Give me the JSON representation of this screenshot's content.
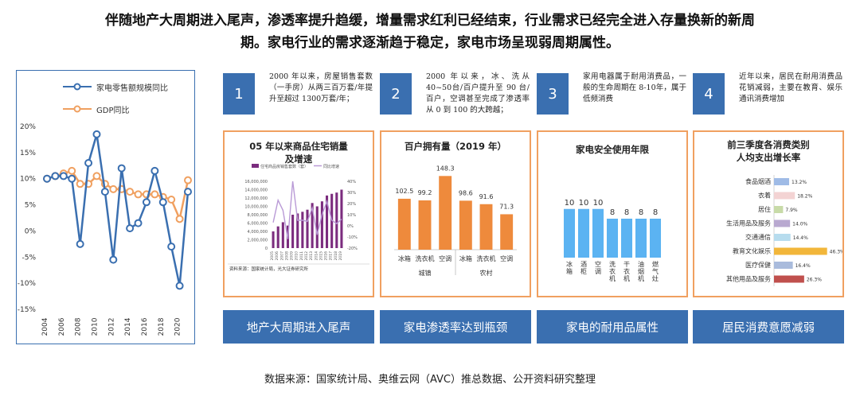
{
  "title": {
    "line1": "伴随地产大周期进入尾声，渗透率提升趋缓，增量需求红利已经结束，行业需求已经完全进入存量换新的新周",
    "line2": "期。家电行业的需求逐渐趋于稳定，家电市场呈现弱周期属性。"
  },
  "points": [
    {
      "num": "1",
      "text": "2000 年以来，房屋销售套数（一手房）从两三百万套/年提升至超过 1300万套/年；"
    },
    {
      "num": "2",
      "text": "2000 年以来，冰、洗从40~50台/百户提升至 90 台/百户，空调甚至完成了渗透率从 0 到 100 的大跨越；"
    },
    {
      "num": "3",
      "text": "家用电器属于耐用消费品，一般的生命周期在 8-10年，属于低频消费"
    },
    {
      "num": "4",
      "text": "近年以来，居民在耐用消费品花销减弱，主要在教育、娱乐通讯消费增加"
    }
  ],
  "buttons": [
    "地产大周期进入尾声",
    "家电渗透率达到瓶颈",
    "家电的耐用品属性",
    "居民消费意愿减弱"
  ],
  "source": "数据来源：国家统计局、奥维云网（AVC）推总数据、公开资料研究整理",
  "colors": {
    "blue": "#3a6fb0",
    "orange": "#f0a060",
    "purple": "#7b2c7e",
    "bar_orange": "#ee8a3c",
    "bar_blue": "#5bb3f2"
  },
  "chart_data": [
    {
      "type": "line",
      "title": "",
      "legend": [
        "家电零售额规模同比",
        "GDP同比"
      ],
      "x": [
        2004,
        2005,
        2006,
        2007,
        2008,
        2009,
        2010,
        2011,
        2012,
        2013,
        2014,
        2015,
        2016,
        2017,
        2018,
        2019,
        2020,
        2021
      ],
      "x_tick_labels": [
        "2004",
        "2006",
        "2008",
        "2010",
        "2012",
        "2014",
        "2016",
        "2018",
        "2020"
      ],
      "y_tick_labels": [
        "20%",
        "15%",
        "10%",
        "5%",
        "0%",
        "-5%",
        "-10%",
        "-15%"
      ],
      "ylim": [
        -15,
        20
      ],
      "series": [
        {
          "name": "家电零售额规模同比",
          "values": [
            10,
            10.5,
            10.5,
            10,
            -2.5,
            13,
            18.5,
            7.5,
            -5.5,
            12,
            0.5,
            1.5,
            5.5,
            11.5,
            5.5,
            -3,
            -10.5,
            7.5
          ]
        },
        {
          "name": "GDP同比",
          "values": [
            10,
            10.5,
            11,
            11.5,
            9,
            9,
            10.5,
            9,
            8,
            8,
            7.5,
            7,
            7,
            7,
            6.5,
            6,
            2.3,
            9.7
          ]
        }
      ]
    },
    {
      "type": "bar",
      "title": "05 年以来商品住宅销量及增速",
      "legend": [
        "住宅商品房销售套数（套）",
        "同比增速"
      ],
      "categories": [
        "2005",
        "2006",
        "2007",
        "2008",
        "2009",
        "2010",
        "2011",
        "2012",
        "2013",
        "2014",
        "2015",
        "2016",
        "2017",
        "2018",
        "2019"
      ],
      "y_tick_labels": [
        "16,000,000",
        "14,000,000",
        "12,000,000",
        "10,000,000",
        "8,000,000",
        "6,000,000",
        "4,000,000",
        "2,000,000",
        "0"
      ],
      "y2_tick_labels": [
        "40%",
        "30%",
        "20%",
        "10%",
        "0%",
        "-10%",
        "-20%"
      ],
      "ylim": [
        0,
        16000000
      ],
      "y2lim": [
        -20,
        40
      ],
      "series": [
        {
          "name": "住宅商品房销售套数（套）",
          "values": [
            4000000,
            5200000,
            6200000,
            5400000,
            8000000,
            8300000,
            8700000,
            9200000,
            10800000,
            10000000,
            11200000,
            12600000,
            13000000,
            13300000,
            14000000
          ]
        },
        {
          "name": "同比增速",
          "values": [
            3,
            23,
            14,
            -12,
            40,
            5,
            5,
            4,
            16,
            -8,
            10,
            22,
            5,
            2,
            6
          ]
        }
      ],
      "footnote": "资料来源：国家统计局，光大证券研究所"
    },
    {
      "type": "bar",
      "title": "百户拥有量（2019 年）",
      "categories": [
        "冰箱",
        "洗衣机",
        "空调",
        "冰箱",
        "洗衣机",
        "空调"
      ],
      "groups": [
        "城镇",
        "农村"
      ],
      "values": [
        102.5,
        99.2,
        148.3,
        98.6,
        91.6,
        71.3
      ],
      "value_labels": [
        "102.5",
        "99.2",
        "148.3",
        "98.6",
        "91.6",
        "71.3"
      ],
      "ylim": [
        0,
        160
      ]
    },
    {
      "type": "bar",
      "title": "家电安全使用年限",
      "categories": [
        "冰箱",
        "酒柜",
        "空调",
        "洗衣机",
        "干衣机",
        "油烟机",
        "燃气灶"
      ],
      "values": [
        10,
        10,
        10,
        8,
        8,
        8,
        8
      ],
      "value_labels": [
        "10",
        "10",
        "10",
        "8",
        "8",
        "8",
        "8"
      ],
      "ylim": [
        0,
        16
      ]
    },
    {
      "type": "bar",
      "orientation": "horizontal",
      "title": "前三季度各消费类别人均支出增长率",
      "categories": [
        "食品烟酒",
        "衣着",
        "居住",
        "生活用品及服务",
        "交通通信",
        "教育文化娱乐",
        "医疗保健",
        "其他用品及服务"
      ],
      "values": [
        13.2,
        18.2,
        7.9,
        14.0,
        14.4,
        46.3,
        16.4,
        26.3
      ],
      "value_labels": [
        "13.2%",
        "18.2%",
        "7.9%",
        "14.0%",
        "14.4%",
        "46.3%",
        "16.4%",
        "26.3%"
      ],
      "colors": [
        "#9fbbe6",
        "#f3d3d3",
        "#c8dba8",
        "#b9a9d0",
        "#b7dcee",
        "#f2b63a",
        "#a9bbdc",
        "#c0504d"
      ],
      "xlim": [
        0,
        50
      ]
    }
  ]
}
